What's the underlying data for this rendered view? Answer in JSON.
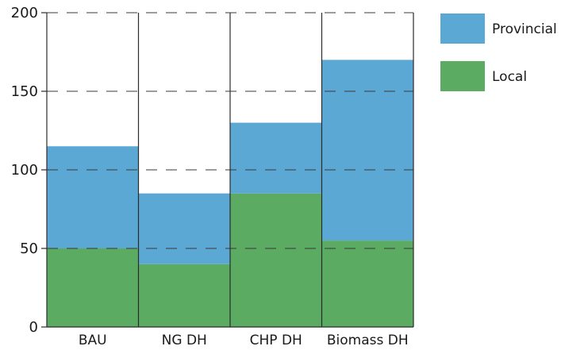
{
  "chart_data": {
    "type": "bar",
    "stacked": true,
    "categories": [
      "BAU",
      "NG DH",
      "CHP DH",
      "Biomass DH"
    ],
    "series": [
      {
        "name": "Local",
        "color": "#5bab63",
        "values": [
          50,
          40,
          85,
          55
        ]
      },
      {
        "name": "Provincial",
        "color": "#5ba8d4",
        "values": [
          65,
          45,
          45,
          115
        ]
      }
    ],
    "ylim": [
      0,
      200
    ],
    "yticks": [
      0,
      50,
      100,
      150,
      200
    ],
    "grid": "horizontal dashed",
    "legend_position": "top-right",
    "legend_order": [
      "Provincial",
      "Local"
    ]
  }
}
